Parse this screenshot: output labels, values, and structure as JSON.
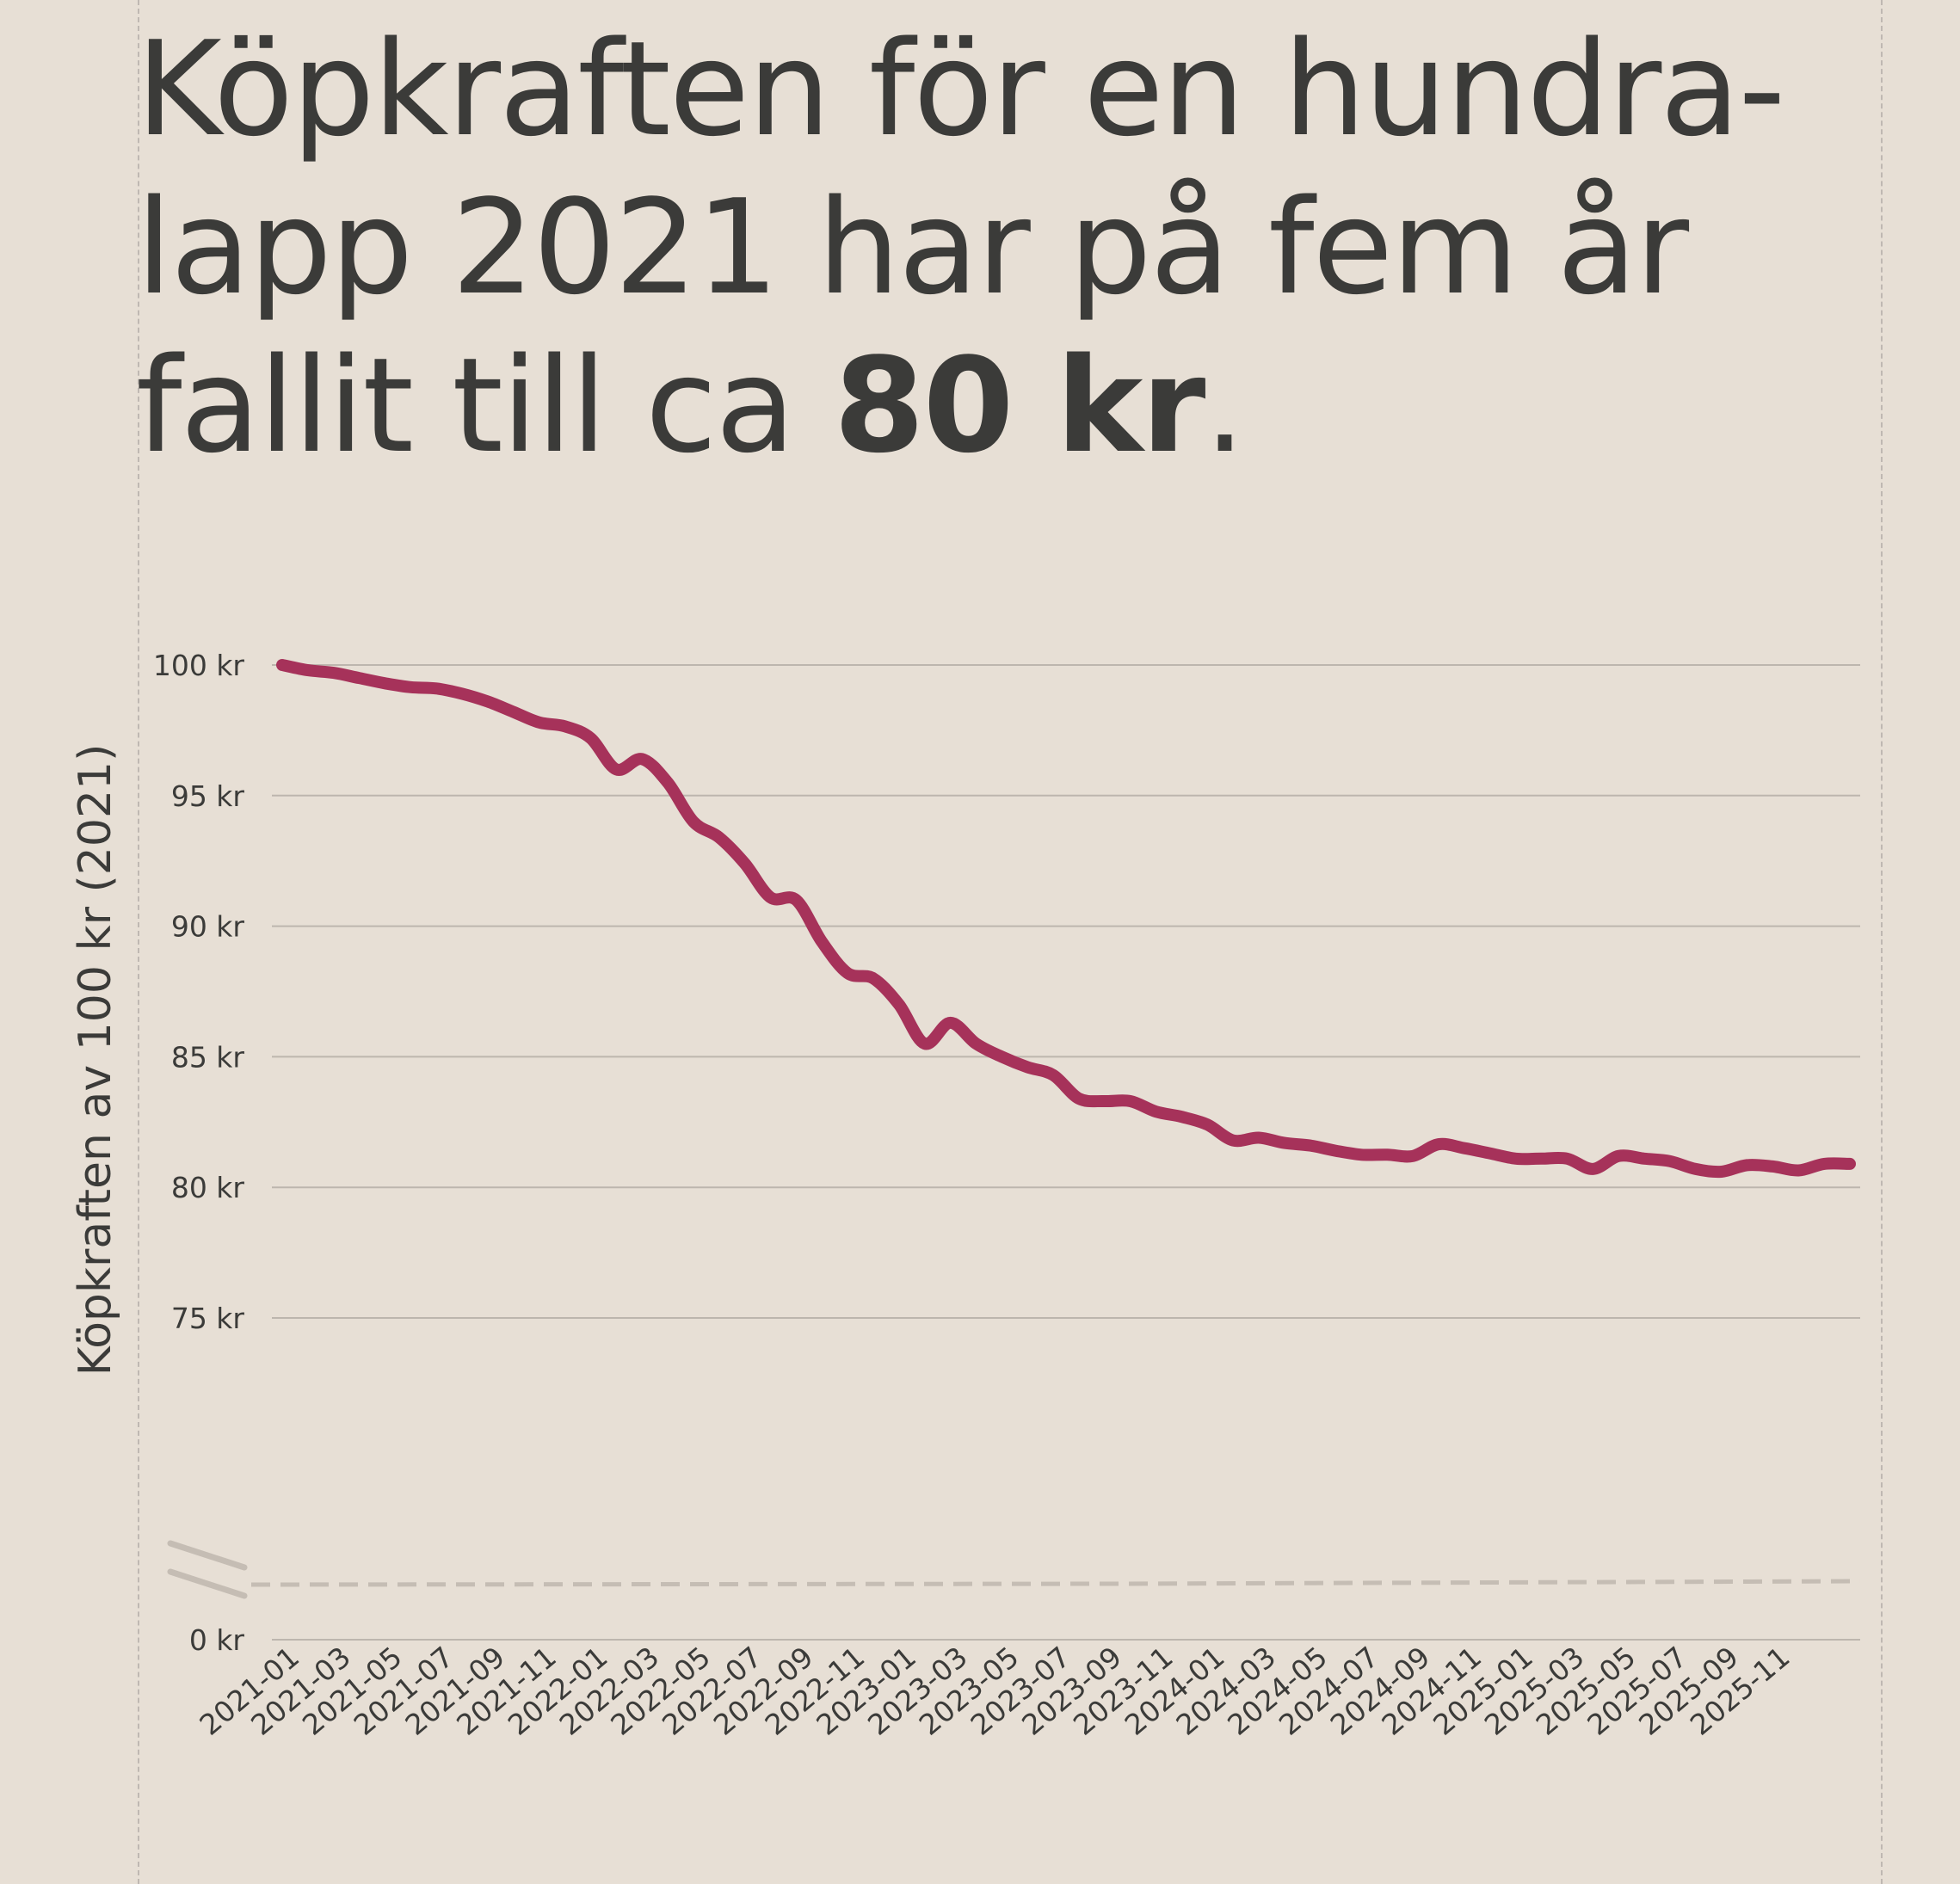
{
  "title": {
    "line1": "Köpkraften för en hundra-",
    "line2": "lapp 2021 har på fem år",
    "line3_prefix": "fallit till ca ",
    "line3_bold": "80 kr",
    "line3_suffix": "."
  },
  "colors": {
    "background": "#e7dfd5",
    "line": "#a6325a",
    "grid": "#bdb6ae",
    "text": "#3b3b39",
    "axis_break": "#c5bdb4"
  },
  "chart_data": {
    "type": "line",
    "title": "",
    "xlabel": "",
    "ylabel": "Köpkraften av 100 kr (2021)",
    "ylim": [
      0,
      100
    ],
    "axis_break": {
      "from": 0,
      "to": 75
    },
    "y_ticks": [
      100,
      95,
      90,
      85,
      80,
      75,
      0
    ],
    "y_tick_labels": [
      "100 kr",
      "95 kr",
      "90 kr",
      "85 kr",
      "80 kr",
      "75 kr",
      "0 kr"
    ],
    "x_tick_labels": [
      "2021-01",
      "2021-03",
      "2021-05",
      "2021-07",
      "2021-09",
      "2021-11",
      "2022-01",
      "2022-03",
      "2022-05",
      "2022-07",
      "2022-09",
      "2022-11",
      "2023-01",
      "2023-03",
      "2023-05",
      "2023-07",
      "2023-09",
      "2023-11",
      "2024-01",
      "2024-03",
      "2024-05",
      "2024-07",
      "2024-09",
      "2024-11",
      "2025-01",
      "2025-03",
      "2025-05",
      "2025-07",
      "2025-09",
      "2025-11"
    ],
    "grid": true,
    "series": [
      {
        "values": [
          100.0,
          99.8,
          99.7,
          99.5,
          99.3,
          99.15,
          99.1,
          98.9,
          98.6,
          98.2,
          97.8,
          97.65,
          97.2,
          96.0,
          96.4,
          95.5,
          94.0,
          93.4,
          92.4,
          91.1,
          91.0,
          89.4,
          88.2,
          88.0,
          87.0,
          85.5,
          86.3,
          85.5,
          85.0,
          84.6,
          84.3,
          83.4,
          83.3,
          83.3,
          82.9,
          82.7,
          82.4,
          81.8,
          81.9,
          81.7,
          81.6,
          81.4,
          81.25,
          81.25,
          81.2,
          81.65,
          81.5,
          81.3,
          81.1,
          81.1,
          81.1,
          80.7,
          81.2,
          81.1,
          81.0,
          80.7,
          80.6,
          80.85,
          80.8,
          80.65,
          80.9,
          80.9
        ]
      }
    ]
  }
}
